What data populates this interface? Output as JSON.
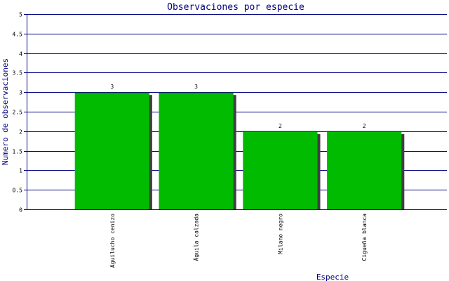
{
  "chart_data": {
    "type": "bar",
    "title": "Observaciones por especie",
    "xlabel": "Especie",
    "ylabel": "Numero de observaciones",
    "categories": [
      "Aguilucho cenizo",
      "Águila calzada",
      "Milano negro",
      "Cigueña blanca"
    ],
    "values": [
      3,
      3,
      2,
      2
    ],
    "value_labels": [
      "3",
      "3",
      "2",
      "2"
    ],
    "yticks": [
      "0",
      "0.5",
      "1",
      "1.5",
      "2",
      "2.5",
      "3",
      "3.5",
      "4",
      "4.5",
      "5"
    ],
    "ylim": [
      0,
      5
    ],
    "grid": true,
    "bar_color": "#00bb00",
    "shadow_color": "#404040",
    "axis_color": "#000080"
  }
}
